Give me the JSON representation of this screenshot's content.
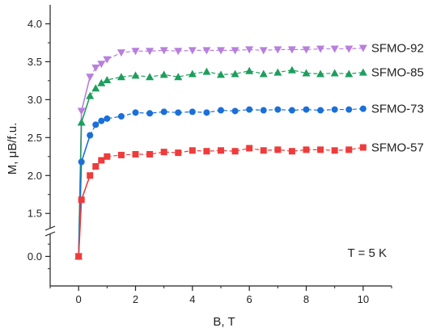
{
  "chart_data": {
    "type": "line",
    "xlabel": "B, T",
    "ylabel": "M, μB/f.u.",
    "xlim": [
      -1,
      11
    ],
    "xticks": [
      0,
      2,
      4,
      6,
      8,
      10
    ],
    "ylim_upper": [
      1.3,
      4.25
    ],
    "ylim_lower": [
      -0.6,
      0.45
    ],
    "yticks_upper": [
      1.5,
      2.0,
      2.5,
      3.0,
      3.5,
      4.0
    ],
    "yticks_lower": [
      0.0
    ],
    "annotation": "T = 5 K",
    "grid": false,
    "series": [
      {
        "name": "SFMO-92",
        "color": "#b87fdc",
        "marker": "triangle-down",
        "x": [
          0,
          0.1,
          0.4,
          0.6,
          0.8,
          1.0,
          1.5,
          2,
          2.5,
          3,
          3.5,
          4,
          4.5,
          5,
          5.5,
          6,
          6.5,
          7,
          7.5,
          8,
          8.5,
          9,
          9.5,
          10
        ],
        "y": [
          0.0,
          2.85,
          3.3,
          3.42,
          3.47,
          3.53,
          3.62,
          3.64,
          3.64,
          3.65,
          3.64,
          3.65,
          3.65,
          3.65,
          3.65,
          3.66,
          3.65,
          3.66,
          3.66,
          3.66,
          3.67,
          3.67,
          3.67,
          3.68
        ]
      },
      {
        "name": "SFMO-85",
        "color": "#1e9e5e",
        "marker": "triangle-up",
        "x": [
          0,
          0.1,
          0.4,
          0.6,
          0.8,
          1.0,
          1.5,
          2,
          2.5,
          3,
          3.5,
          4,
          4.5,
          5,
          5.5,
          6,
          6.5,
          7,
          7.5,
          8,
          8.5,
          9,
          9.5,
          10
        ],
        "y": [
          0.0,
          2.7,
          3.05,
          3.15,
          3.22,
          3.26,
          3.3,
          3.32,
          3.3,
          3.33,
          3.3,
          3.34,
          3.37,
          3.33,
          3.34,
          3.38,
          3.34,
          3.36,
          3.39,
          3.35,
          3.34,
          3.35,
          3.34,
          3.36
        ]
      },
      {
        "name": "SFMO-73",
        "color": "#1a6fd8",
        "marker": "circle",
        "x": [
          0,
          0.1,
          0.4,
          0.6,
          0.8,
          1.0,
          1.5,
          2,
          2.5,
          3,
          3.5,
          4,
          4.5,
          5,
          5.5,
          6,
          6.5,
          7,
          7.5,
          8,
          8.5,
          9,
          9.5,
          10
        ],
        "y": [
          0.0,
          2.18,
          2.53,
          2.67,
          2.72,
          2.75,
          2.78,
          2.83,
          2.82,
          2.84,
          2.83,
          2.84,
          2.83,
          2.86,
          2.85,
          2.87,
          2.86,
          2.87,
          2.86,
          2.87,
          2.86,
          2.87,
          2.87,
          2.88
        ]
      },
      {
        "name": "SFMO-57",
        "color": "#ee3b3b",
        "marker": "square",
        "x": [
          0,
          0.1,
          0.4,
          0.6,
          0.8,
          1.0,
          1.5,
          2,
          2.5,
          3,
          3.5,
          4,
          4.5,
          5,
          5.5,
          6,
          6.5,
          7,
          7.5,
          8,
          8.5,
          9,
          9.5,
          10
        ],
        "y": [
          0.0,
          1.68,
          2.0,
          2.12,
          2.2,
          2.25,
          2.27,
          2.28,
          2.28,
          2.31,
          2.3,
          2.33,
          2.32,
          2.33,
          2.32,
          2.36,
          2.33,
          2.34,
          2.32,
          2.34,
          2.34,
          2.33,
          2.34,
          2.37
        ]
      }
    ]
  }
}
